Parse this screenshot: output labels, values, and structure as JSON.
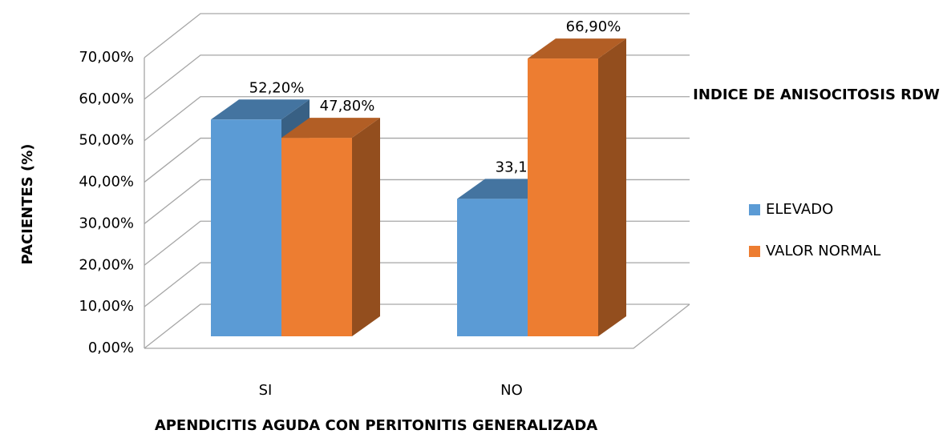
{
  "chart_data": {
    "type": "bar3d",
    "y_label": "PACIENTES (%)",
    "x_label": "APENDICITIS AGUDA CON PERITONITIS GENERALIZADA",
    "legend_title": "INDICE DE ANISOCITOSIS RDW",
    "legend": "right",
    "categories": [
      "SI",
      "NO"
    ],
    "series": [
      {
        "name": "ELEVADO",
        "color": "#5b9bd5",
        "values": [
          52.2,
          33.1
        ],
        "value_labels": [
          "52,20%",
          "33,10%"
        ]
      },
      {
        "name": "VALOR NORMAL",
        "color": "#ed7d31",
        "values": [
          47.8,
          66.9
        ],
        "value_labels": [
          "47,80%",
          "66,90%"
        ]
      }
    ],
    "ylim": [
      0,
      70
    ],
    "yticks": [
      {
        "value": 0,
        "label": "0,00%"
      },
      {
        "value": 10,
        "label": "10,00%"
      },
      {
        "value": 20,
        "label": "20,00%"
      },
      {
        "value": 30,
        "label": "30,00%"
      },
      {
        "value": 40,
        "label": "40,00%"
      },
      {
        "value": 50,
        "label": "50,00%"
      },
      {
        "value": 60,
        "label": "60,00%"
      },
      {
        "value": 70,
        "label": "70,00%"
      }
    ],
    "grid": true
  }
}
